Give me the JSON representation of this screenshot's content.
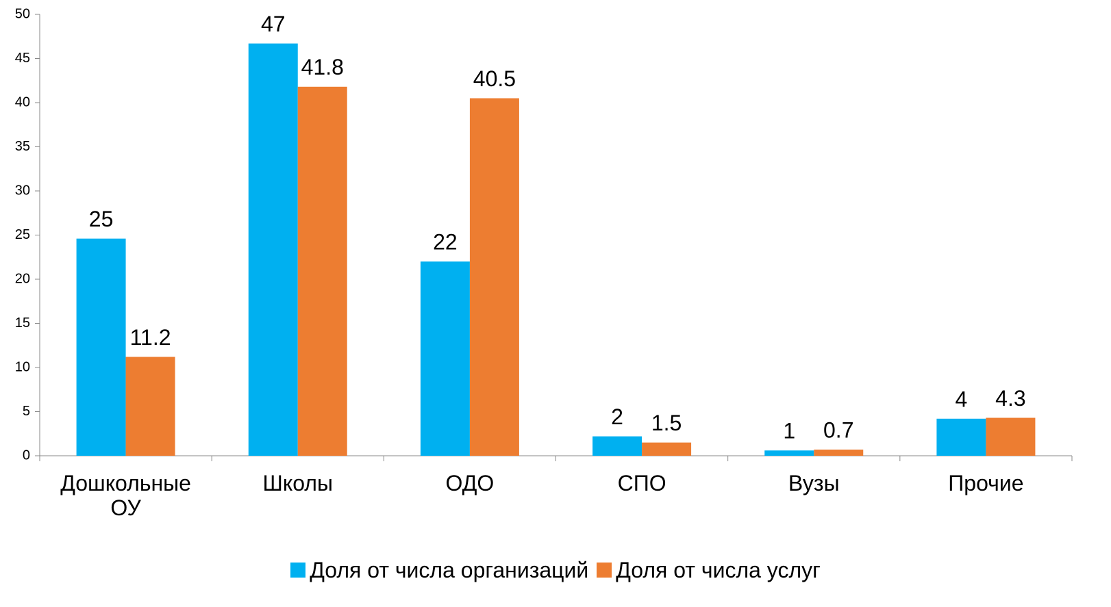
{
  "chart_data": {
    "type": "bar",
    "categories": [
      "Дошкольные ОУ",
      "Школы",
      "ОДО",
      "СПО",
      "Вузы",
      "Прочие"
    ],
    "series": [
      {
        "name": "Доля от числа организаций",
        "color": "#00b0f0",
        "values": [
          24.6,
          46.7,
          22,
          2.2,
          0.6,
          4.2
        ],
        "value_labels": [
          "25",
          "47",
          "22",
          "2",
          "1",
          "4"
        ]
      },
      {
        "name": "Доля от числа услуг",
        "color": "#ed7d31",
        "values": [
          11.2,
          41.8,
          40.5,
          1.5,
          0.7,
          4.3
        ]
      }
    ],
    "ylim": [
      0,
      50
    ],
    "yticks": [
      0,
      5,
      10,
      15,
      20,
      25,
      30,
      35,
      40,
      45,
      50
    ],
    "grid": false,
    "legend": "bottom"
  }
}
